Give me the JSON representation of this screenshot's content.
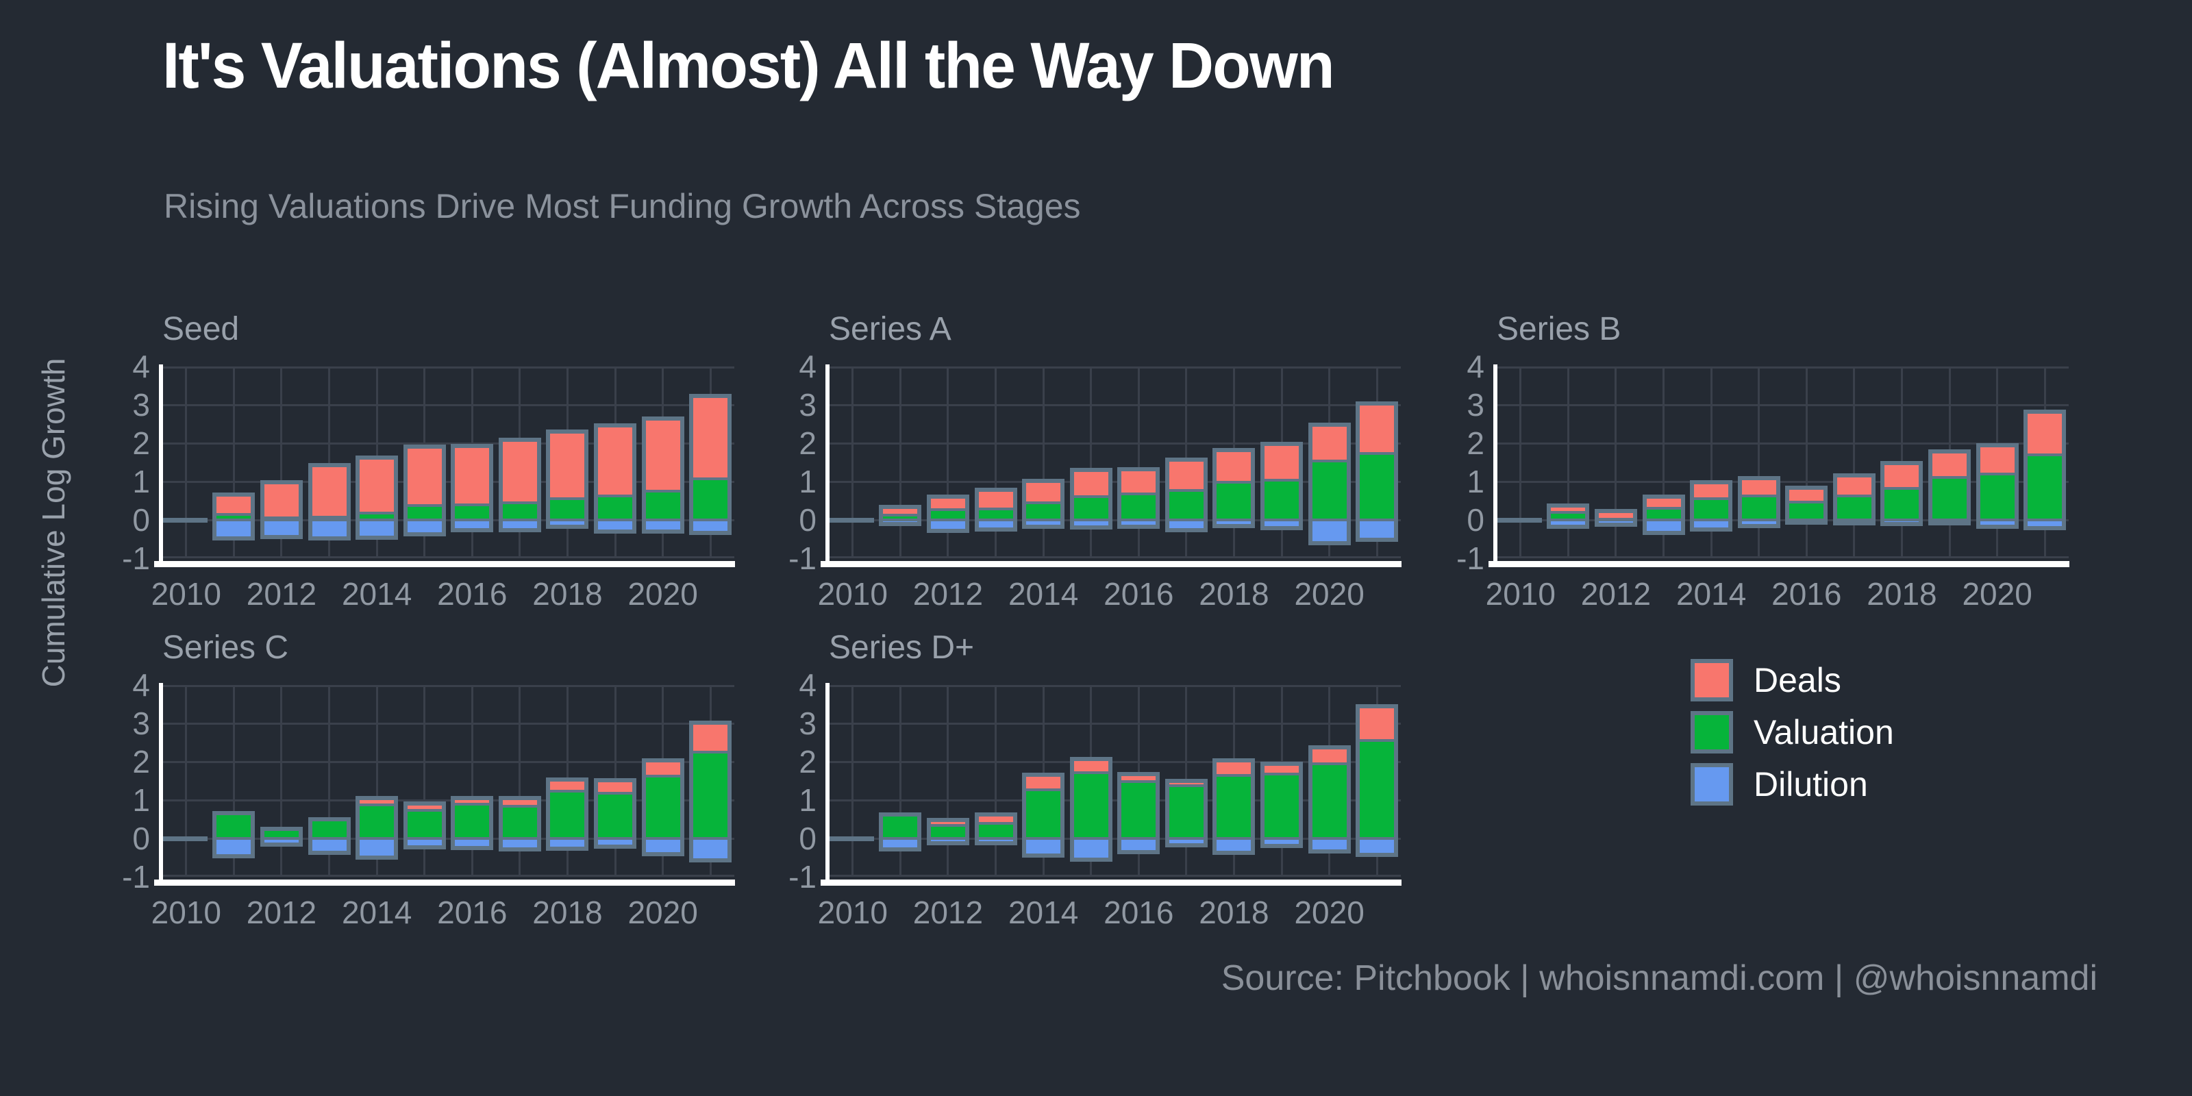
{
  "header": {
    "title": "It's Valuations (Almost) All the Way Down",
    "subtitle": "Rising Valuations Drive Most Funding Growth Across Stages"
  },
  "axis": {
    "y_label": "Cumulative Log Growth",
    "ylim": [
      -1,
      4
    ],
    "y_ticks": [
      4,
      3,
      2,
      1,
      0,
      -1
    ],
    "x_tick_labels": [
      "2010",
      "2012",
      "2014",
      "2016",
      "2018",
      "2020"
    ],
    "grid": "on"
  },
  "legend": {
    "position": "right-middle",
    "items": [
      {
        "label": "Deals",
        "color": "#f8766d"
      },
      {
        "label": "Valuation",
        "color": "#06b43a"
      },
      {
        "label": "Dilution",
        "color": "#6699f0"
      }
    ]
  },
  "colors": {
    "background": "#242a33",
    "gridline": "#3a404b",
    "bar_outline": "#5e7486",
    "deals": "#f8766d",
    "valuation": "#06b43a",
    "dilution": "#6699f0",
    "axis_line": "#ffffff",
    "tick_text": "#9098a2",
    "title_text": "#ffffff",
    "subtitle_text": "#8b929c"
  },
  "footer": {
    "source": "Source: Pitchbook | whoisnnamdi.com | @whoisnnamdi"
  },
  "chart_data": [
    {
      "type": "bar",
      "stacked": true,
      "title": "Seed",
      "x": [
        2010,
        2011,
        2012,
        2013,
        2014,
        2015,
        2016,
        2017,
        2018,
        2019,
        2020,
        2021
      ],
      "series": [
        {
          "name": "Deals",
          "values": [
            0,
            0.46,
            0.88,
            1.29,
            1.41,
            1.48,
            1.48,
            1.59,
            1.7,
            1.78,
            1.84,
            2.09
          ]
        },
        {
          "name": "Valuation",
          "values": [
            0,
            0.14,
            0.05,
            0.08,
            0.17,
            0.38,
            0.39,
            0.45,
            0.55,
            0.63,
            0.75,
            1.08
          ]
        },
        {
          "name": "Dilution",
          "values": [
            0,
            -0.42,
            -0.4,
            -0.42,
            -0.41,
            -0.33,
            -0.21,
            -0.21,
            -0.12,
            -0.25,
            -0.25,
            -0.29
          ]
        }
      ]
    },
    {
      "type": "bar",
      "stacked": true,
      "title": "Series A",
      "x": [
        2010,
        2011,
        2012,
        2013,
        2014,
        2015,
        2016,
        2017,
        2018,
        2019,
        2020,
        2021
      ],
      "series": [
        {
          "name": "Deals",
          "values": [
            0,
            0.16,
            0.28,
            0.45,
            0.51,
            0.64,
            0.59,
            0.75,
            0.78,
            0.88,
            0.9,
            1.24
          ]
        },
        {
          "name": "Valuation",
          "values": [
            0,
            0.12,
            0.27,
            0.29,
            0.45,
            0.61,
            0.67,
            0.77,
            0.99,
            1.04,
            1.53,
            1.74
          ]
        },
        {
          "name": "Dilution",
          "values": [
            0,
            -0.05,
            -0.23,
            -0.19,
            -0.12,
            -0.15,
            -0.12,
            -0.22,
            -0.1,
            -0.16,
            -0.55,
            -0.46
          ]
        }
      ]
    },
    {
      "type": "bar",
      "stacked": true,
      "title": "Series B",
      "x": [
        2010,
        2011,
        2012,
        2013,
        2014,
        2015,
        2016,
        2017,
        2018,
        2019,
        2020,
        2021
      ],
      "series": [
        {
          "name": "Deals",
          "values": [
            0,
            0.13,
            0.16,
            0.24,
            0.38,
            0.4,
            0.32,
            0.48,
            0.6,
            0.63,
            0.7,
            1.07
          ]
        },
        {
          "name": "Valuation",
          "values": [
            0,
            0.2,
            0.02,
            0.31,
            0.55,
            0.63,
            0.46,
            0.62,
            0.83,
            1.1,
            1.2,
            1.7
          ]
        },
        {
          "name": "Dilution",
          "values": [
            0,
            -0.13,
            -0.07,
            -0.28,
            -0.2,
            -0.1,
            -0.02,
            -0.03,
            -0.05,
            -0.04,
            -0.13,
            -0.16
          ]
        }
      ]
    },
    {
      "type": "bar",
      "stacked": true,
      "title": "Series C",
      "x": [
        2010,
        2011,
        2012,
        2013,
        2014,
        2015,
        2016,
        2017,
        2018,
        2019,
        2020,
        2021
      ],
      "series": [
        {
          "name": "Deals",
          "values": [
            0,
            0,
            0,
            0,
            0.13,
            0.11,
            0.1,
            0.16,
            0.24,
            0.29,
            0.35,
            0.71
          ]
        },
        {
          "name": "Valuation",
          "values": [
            0,
            0.6,
            0.2,
            0.44,
            0.87,
            0.74,
            0.9,
            0.84,
            1.24,
            1.18,
            1.63,
            2.25
          ]
        },
        {
          "name": "Dilution",
          "values": [
            0,
            -0.41,
            -0.1,
            -0.33,
            -0.44,
            -0.18,
            -0.2,
            -0.23,
            -0.21,
            -0.16,
            -0.36,
            -0.52
          ]
        }
      ]
    },
    {
      "type": "bar",
      "stacked": true,
      "title": "Series D+",
      "x": [
        2010,
        2011,
        2012,
        2013,
        2014,
        2015,
        2016,
        2017,
        2018,
        2019,
        2020,
        2021
      ],
      "series": [
        {
          "name": "Deals",
          "values": [
            0,
            0,
            0.09,
            0.18,
            0.33,
            0.3,
            0.14,
            0.08,
            0.34,
            0.22,
            0.37,
            0.84
          ]
        },
        {
          "name": "Valuation",
          "values": [
            0,
            0.58,
            0.34,
            0.4,
            1.27,
            1.72,
            1.49,
            1.37,
            1.64,
            1.68,
            1.95,
            2.56
          ]
        },
        {
          "name": "Dilution",
          "values": [
            0,
            -0.24,
            -0.07,
            -0.08,
            -0.4,
            -0.5,
            -0.3,
            -0.12,
            -0.33,
            -0.15,
            -0.28,
            -0.38
          ]
        }
      ]
    }
  ]
}
